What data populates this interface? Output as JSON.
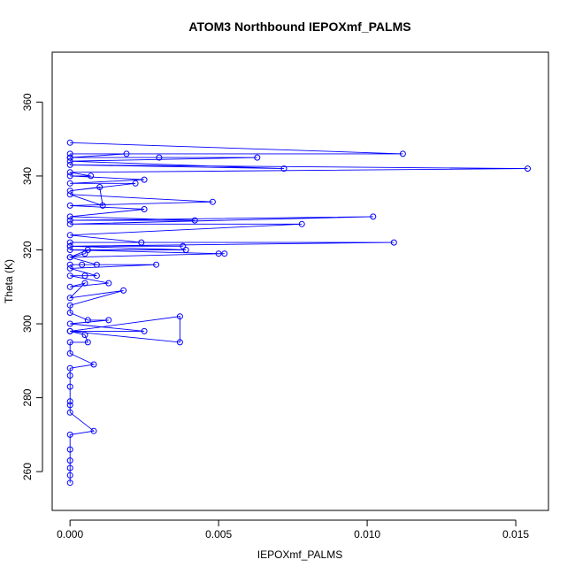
{
  "chart_data": {
    "type": "line",
    "title": "ATOM3 Northbound IEPOXmf_PALMS",
    "xlabel": "IEPOXmf_PALMS",
    "ylabel": "Theta (K)",
    "xlim": [
      -0.0006,
      0.0161
    ],
    "ylim": [
      249.5,
      373.5
    ],
    "x_ticks": [
      0.0,
      0.005,
      0.01,
      0.015
    ],
    "x_tick_labels": [
      "0.000",
      "0.005",
      "0.010",
      "0.015"
    ],
    "y_ticks": [
      260,
      280,
      300,
      320,
      340,
      360
    ],
    "y_tick_labels": [
      "260",
      "280",
      "300",
      "320",
      "340",
      "360"
    ],
    "grid": false,
    "series": [
      {
        "color": "#0000ff",
        "marker": "open-circle",
        "x": [
          0,
          0,
          0,
          0,
          0,
          0,
          0.0008,
          0,
          0,
          0,
          0,
          0,
          0,
          0.0008,
          0,
          0,
          0.0006,
          0.0005,
          0,
          0.0037,
          0.0037,
          0,
          0.0025,
          0,
          0.0013,
          0.0006,
          0,
          0,
          0.0018,
          0,
          0.0005,
          0,
          0.0013,
          0,
          0.0005,
          0.0009,
          0,
          0.0029,
          0,
          0.0004,
          0.0009,
          0,
          0.0005,
          0.0006,
          0,
          0.0052,
          0.005,
          0,
          0.0039,
          0,
          0.0038,
          0,
          0.0109,
          0,
          0.0024,
          0,
          0.0078,
          0,
          0.0102,
          0,
          0.0042,
          0,
          0.0025,
          0,
          0.0048,
          0,
          0.0011,
          0.001,
          0,
          0.0022,
          0,
          0.0025,
          0,
          0.0007,
          0,
          0.0154,
          0,
          0.0072,
          0,
          0.0063,
          0,
          0.003,
          0,
          0.0019,
          0,
          0.0112,
          0
        ],
        "y": [
          257,
          259,
          261,
          263,
          266,
          270,
          271,
          276,
          278,
          279,
          283,
          286,
          288,
          289,
          292,
          295,
          295,
          297,
          298,
          295,
          302,
          298,
          298,
          300,
          301,
          301,
          303,
          305,
          309,
          307,
          311,
          310,
          311,
          313,
          313,
          313,
          315,
          316,
          316,
          316,
          316,
          318,
          319,
          320,
          318,
          319,
          319,
          320,
          320,
          321,
          321,
          321,
          322,
          322,
          322,
          324,
          327,
          327,
          329,
          328,
          328,
          329,
          331,
          332,
          333,
          335,
          332,
          337,
          336,
          338,
          338,
          339,
          340,
          340,
          341,
          342,
          343,
          342,
          344,
          345,
          345,
          345,
          345,
          346,
          346,
          346,
          349
        ]
      }
    ]
  }
}
